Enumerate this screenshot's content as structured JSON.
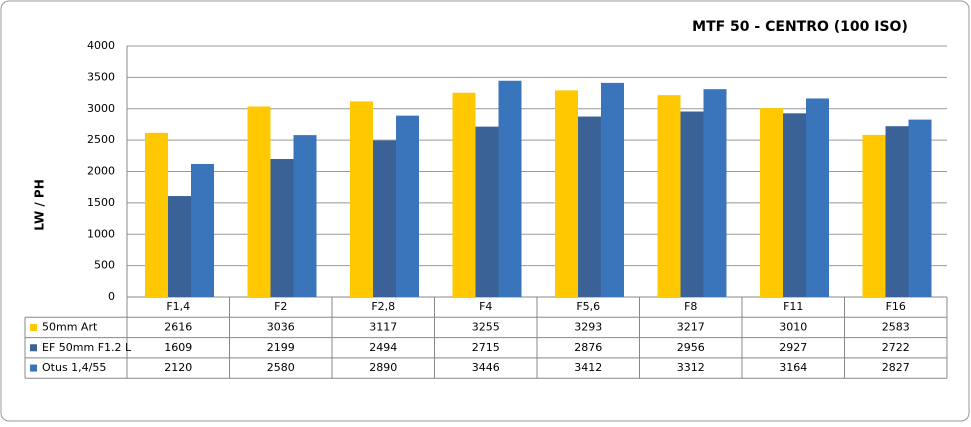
{
  "chart_data": {
    "type": "bar",
    "title": "MTF 50 - CENTRO (100 ISO)",
    "y_label": "LW / PH",
    "categories": [
      "F1,4",
      "F2",
      "F2,8",
      "F4",
      "F5,6",
      "F8",
      "F11",
      "F16"
    ],
    "series": [
      {
        "name": "50mm Art",
        "color": "#ffc800",
        "values": [
          2616,
          3036,
          3117,
          3255,
          3293,
          3217,
          3010,
          2583
        ]
      },
      {
        "name": "EF 50mm F1.2  L",
        "color": "#3b6296",
        "values": [
          1609,
          2199,
          2494,
          2715,
          2876,
          2956,
          2927,
          2722
        ]
      },
      {
        "name": "Otus 1,4/55",
        "color": "#3a75bb",
        "values": [
          2120,
          2580,
          2890,
          3446,
          3412,
          3312,
          3164,
          2827
        ]
      }
    ],
    "ylim": [
      0,
      4000
    ],
    "yticks": [
      0,
      500,
      1000,
      1500,
      2000,
      2500,
      3000,
      3500,
      4000
    ],
    "grid": true
  }
}
